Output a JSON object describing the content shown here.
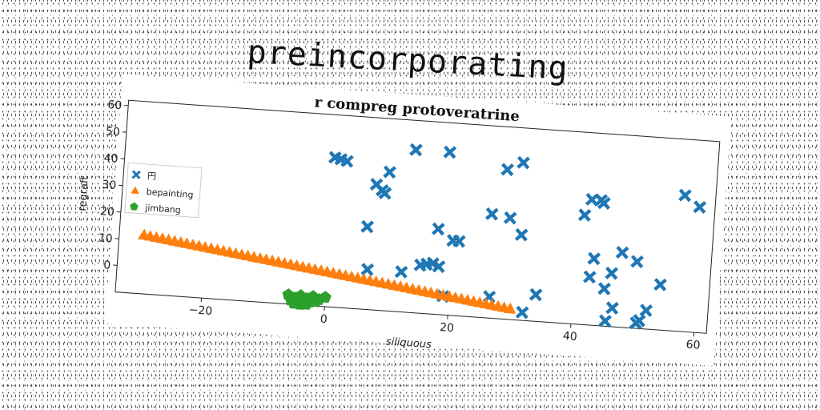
{
  "page": {
    "title": "preincorporating"
  },
  "chart_data": {
    "type": "scatter",
    "title": "r compreg protoveratrine",
    "xlabel": "siliquous",
    "ylabel": "regraft",
    "xlim": [
      -34,
      62
    ],
    "ylim": [
      -10,
      62
    ],
    "xticks": [
      -20,
      0,
      20,
      40,
      60
    ],
    "yticks": [
      0,
      10,
      20,
      30,
      40,
      50,
      60
    ],
    "grid": false,
    "legend_position": "center-left",
    "series": [
      {
        "name": "円",
        "marker": "x-filled",
        "color": "#1f77b4",
        "points": [
          [
            0,
            46
          ],
          [
            1,
            45.5
          ],
          [
            2,
            45
          ],
          [
            6,
            21
          ],
          [
            6.5,
            5
          ],
          [
            7,
            37
          ],
          [
            8,
            35
          ],
          [
            8.5,
            34
          ],
          [
            9,
            42
          ],
          [
            12,
            5
          ],
          [
            13,
            51
          ],
          [
            15,
            8
          ],
          [
            16,
            8.5
          ],
          [
            17,
            9
          ],
          [
            17.5,
            22
          ],
          [
            18,
            8
          ],
          [
            18.5,
            51
          ],
          [
            19,
            -3
          ],
          [
            20,
            18
          ],
          [
            21,
            18
          ],
          [
            26,
            29
          ],
          [
            26.5,
            -2
          ],
          [
            28,
            46
          ],
          [
            29,
            28
          ],
          [
            30.5,
            49
          ],
          [
            31,
            22
          ],
          [
            32,
            -7
          ],
          [
            34,
            0
          ],
          [
            41,
            31
          ],
          [
            42,
            37
          ],
          [
            42.5,
            8
          ],
          [
            43,
            15
          ],
          [
            43.5,
            37
          ],
          [
            44,
            36
          ],
          [
            45,
            4
          ],
          [
            45.5,
            -8
          ],
          [
            46,
            10
          ],
          [
            46.5,
            -3
          ],
          [
            47.5,
            18
          ],
          [
            50,
            15
          ],
          [
            50.5,
            -8
          ],
          [
            51,
            -7
          ],
          [
            52,
            -3
          ],
          [
            54,
            7
          ],
          [
            57,
            41
          ],
          [
            59.5,
            37
          ]
        ]
      },
      {
        "name": "bepainting",
        "marker": "triangle",
        "color": "#ff7f0e",
        "x_range": [
          -30,
          30
        ],
        "y_range": [
          12,
          -6
        ],
        "point_count": 61
      },
      {
        "name": "jimbang",
        "marker": "pentagon",
        "color": "#2ca02c",
        "points": [
          [
            -6,
            -6.5
          ],
          [
            -5,
            -7.5
          ],
          [
            -4,
            -6.5
          ],
          [
            -3,
            -7.5
          ],
          [
            -2,
            -6.5
          ],
          [
            -1,
            -7.5
          ],
          [
            0,
            -6.5
          ],
          [
            -5.5,
            -8.5
          ],
          [
            -4.5,
            -8.8
          ],
          [
            -3.5,
            -8.5
          ],
          [
            -2.5,
            -8.7
          ],
          [
            -1.5,
            -8.4
          ],
          [
            -5,
            -9.6
          ],
          [
            -4,
            -9.8
          ],
          [
            -3,
            -9.6
          ]
        ]
      }
    ]
  }
}
